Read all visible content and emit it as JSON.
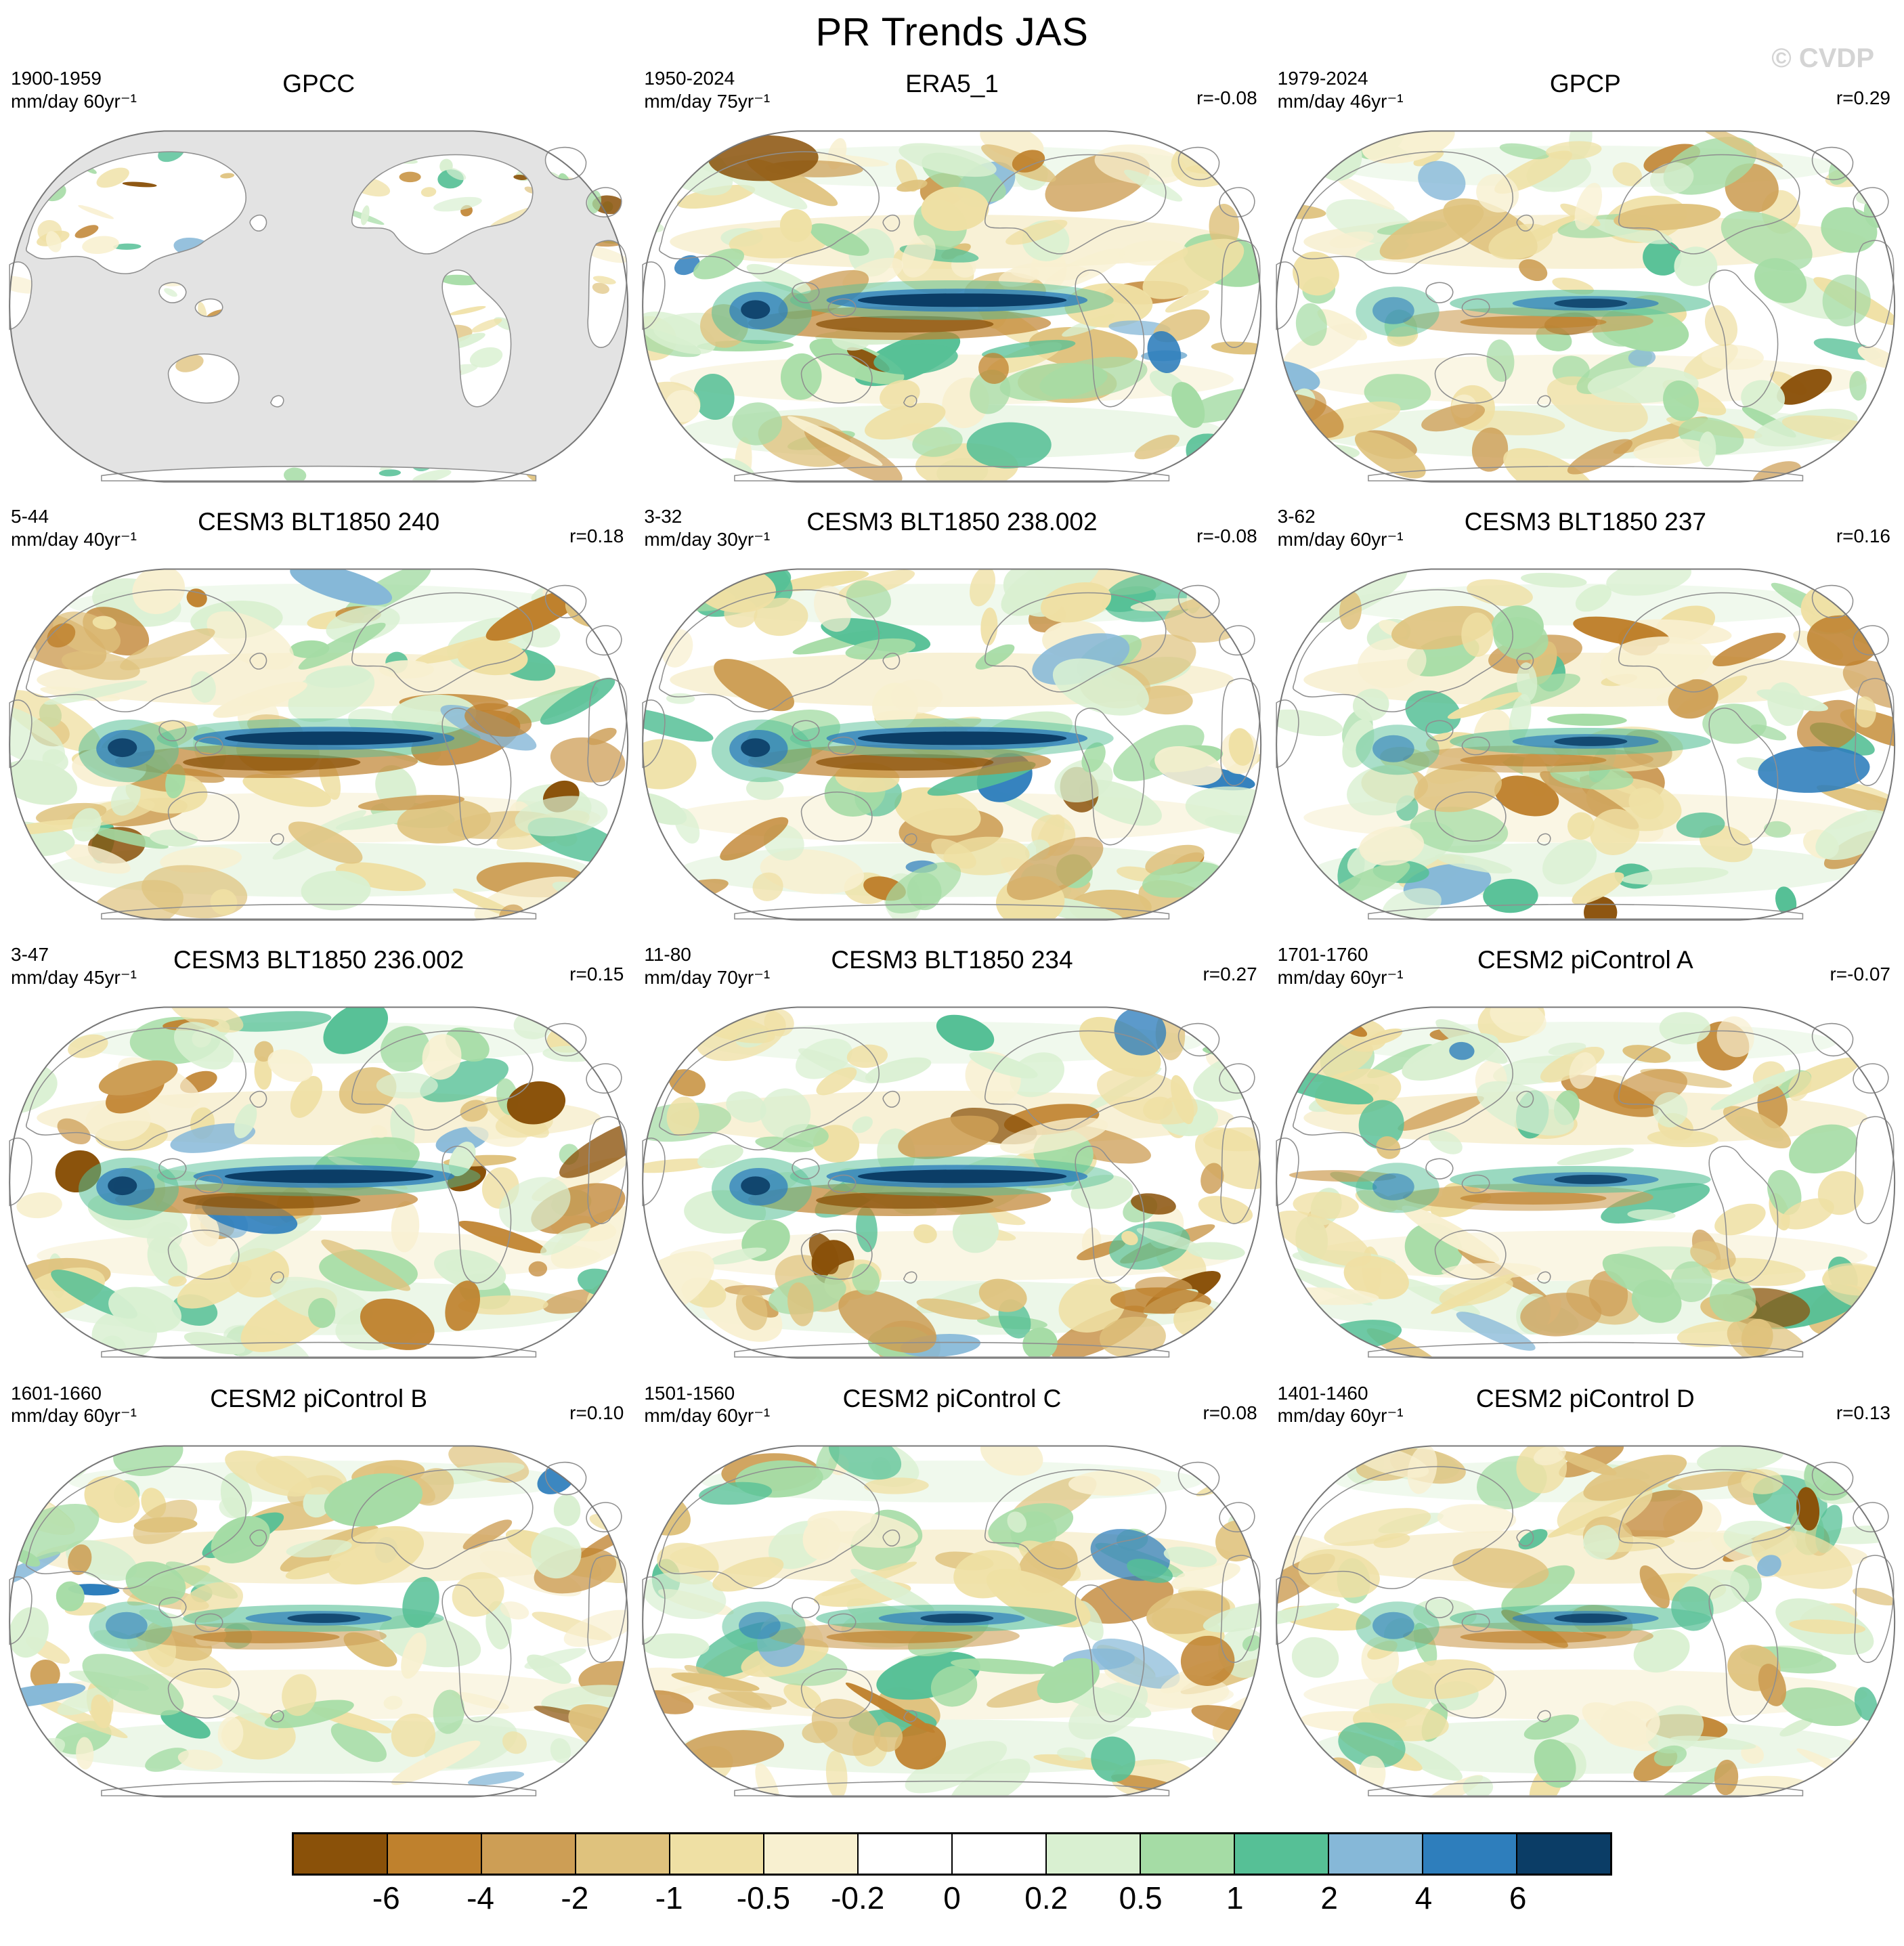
{
  "title": "PR Trends JAS",
  "watermark": "© CVDP",
  "panels": [
    {
      "title": "GPCC",
      "period": "1900-1959",
      "units": "mm/day 60yr⁻¹",
      "r": ""
    },
    {
      "title": "ERA5_1",
      "period": "1950-2024",
      "units": "mm/day 75yr⁻¹",
      "r": "r=-0.08"
    },
    {
      "title": "GPCP",
      "period": "1979-2024",
      "units": "mm/day 46yr⁻¹",
      "r": "r=0.29"
    },
    {
      "title": "CESM3 BLT1850 240",
      "period": "5-44",
      "units": "mm/day 40yr⁻¹",
      "r": "r=0.18"
    },
    {
      "title": "CESM3 BLT1850 238.002",
      "period": "3-32",
      "units": "mm/day 30yr⁻¹",
      "r": "r=-0.08"
    },
    {
      "title": "CESM3 BLT1850 237",
      "period": "3-62",
      "units": "mm/day 60yr⁻¹",
      "r": "r=0.16"
    },
    {
      "title": "CESM3 BLT1850 236.002",
      "period": "3-47",
      "units": "mm/day 45yr⁻¹",
      "r": "r=0.15"
    },
    {
      "title": "CESM3 BLT1850 234",
      "period": "11-80",
      "units": "mm/day 70yr⁻¹",
      "r": "r=0.27"
    },
    {
      "title": "CESM2 piControl A",
      "period": "1701-1760",
      "units": "mm/day 60yr⁻¹",
      "r": "r=-0.07"
    },
    {
      "title": "CESM2 piControl B",
      "period": "1601-1660",
      "units": "mm/day 60yr⁻¹",
      "r": "r=0.10"
    },
    {
      "title": "CESM2 piControl C",
      "period": "1501-1560",
      "units": "mm/day 60yr⁻¹",
      "r": "r=0.08"
    },
    {
      "title": "CESM2 piControl D",
      "period": "1401-1460",
      "units": "mm/day 60yr⁻¹",
      "r": "r=0.13"
    }
  ],
  "colorbar": {
    "labels": [
      "-6",
      "-4",
      "-2",
      "-1",
      "-0.5",
      "-0.2",
      "0",
      "0.2",
      "0.5",
      "1",
      "2",
      "4",
      "6"
    ],
    "colors": [
      "#8a5109",
      "#bf812d",
      "#cd9e55",
      "#dfc27d",
      "#efe0a4",
      "#f8f0d0",
      "#ffffff",
      "#ffffff",
      "#d9f0d1",
      "#a5dca5",
      "#56c096",
      "#86b8d8",
      "#2e7ebc",
      "#0b3d66"
    ]
  },
  "chart_data": {
    "type": "heatmap",
    "subtype": "global-filled-contour-trend-maps",
    "title": "PR Trends JAS",
    "variable": "precipitation trend",
    "season": "JAS",
    "layout": "4 rows x 3 columns of world maps (Pacific-centered), shared discrete colorbar at bottom",
    "colorbar_levels": [
      -6,
      -4,
      -2,
      -1,
      -0.5,
      -0.2,
      0,
      0.2,
      0.5,
      1,
      2,
      4,
      6
    ],
    "colorbar_colors": [
      "#8a5109",
      "#bf812d",
      "#cd9e55",
      "#dfc27d",
      "#efe0a4",
      "#f8f0d0",
      "#ffffff",
      "#ffffff",
      "#d9f0d1",
      "#a5dca5",
      "#56c096",
      "#86b8d8",
      "#2e7ebc",
      "#0b3d66"
    ],
    "panels": [
      {
        "title": "GPCC",
        "period": "1900-1959",
        "units": "mm/day 60yr⁻¹",
        "r": null,
        "note": "land-only data, oceans masked gray"
      },
      {
        "title": "ERA5_1",
        "period": "1950-2024",
        "units": "mm/day 75yr⁻¹",
        "r": -0.08,
        "note": "strong dark-blue positive streak along equatorial Pacific"
      },
      {
        "title": "GPCP",
        "period": "1979-2024",
        "units": "mm/day 46yr⁻¹",
        "r": 0.29
      },
      {
        "title": "CESM3 BLT1850 240",
        "period": "5-44",
        "units": "mm/day 40yr⁻¹",
        "r": 0.18
      },
      {
        "title": "CESM3 BLT1850 238.002",
        "period": "3-32",
        "units": "mm/day 30yr⁻¹",
        "r": -0.08
      },
      {
        "title": "CESM3 BLT1850 237",
        "period": "3-62",
        "units": "mm/day 60yr⁻¹",
        "r": 0.16
      },
      {
        "title": "CESM3 BLT1850 236.002",
        "period": "3-47",
        "units": "mm/day 45yr⁻¹",
        "r": 0.15
      },
      {
        "title": "CESM3 BLT1850 234",
        "period": "11-80",
        "units": "mm/day 70yr⁻¹",
        "r": 0.27
      },
      {
        "title": "CESM2 piControl A",
        "period": "1701-1760",
        "units": "mm/day 60yr⁻¹",
        "r": -0.07
      },
      {
        "title": "CESM2 piControl B",
        "period": "1601-1660",
        "units": "mm/day 60yr⁻¹",
        "r": 0.1
      },
      {
        "title": "CESM2 piControl C",
        "period": "1501-1560",
        "units": "mm/day 60yr⁻¹",
        "r": 0.08
      },
      {
        "title": "CESM2 piControl D",
        "period": "1401-1460",
        "units": "mm/day 60yr⁻¹",
        "r": 0.13
      }
    ]
  }
}
